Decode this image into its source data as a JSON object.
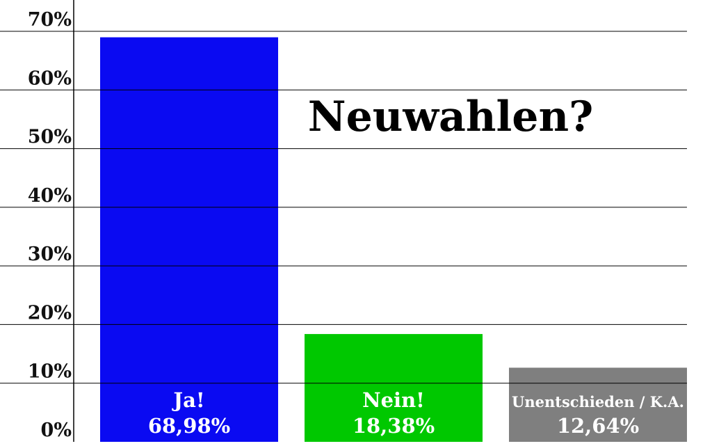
{
  "chart_data": {
    "type": "bar",
    "title": "Neuwahlen?",
    "categories": [
      "Ja!",
      "Nein!",
      "Unentschieden / K.A."
    ],
    "values": [
      68.98,
      18.38,
      12.64
    ],
    "value_labels": [
      "68,98%",
      "18,38%",
      "12,64%"
    ],
    "colors": [
      "#0a0af2",
      "#00c800",
      "#7f7f7f"
    ],
    "ylim": [
      0,
      70
    ],
    "yticks": [
      0,
      10,
      20,
      30,
      40,
      50,
      60,
      70
    ],
    "ytick_labels": [
      "0%",
      "10%",
      "20%",
      "30%",
      "40%",
      "50%",
      "60%",
      "70%"
    ],
    "grid": true,
    "legend": "none"
  }
}
